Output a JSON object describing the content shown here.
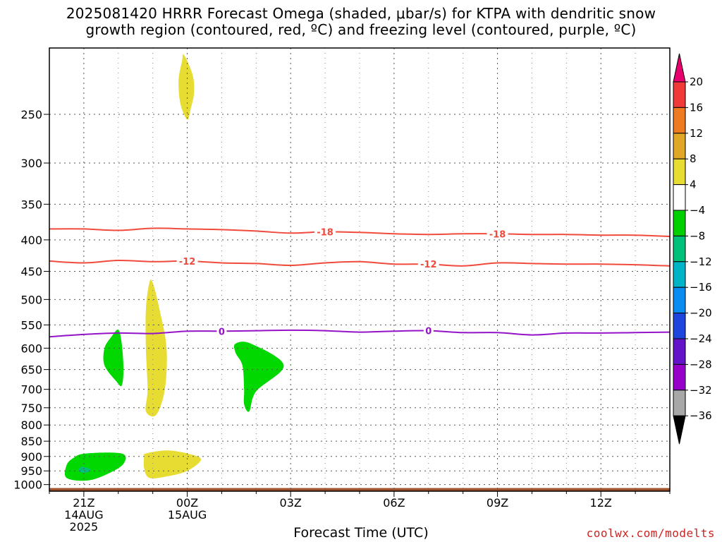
{
  "title": {
    "line1": "2025081420 HRRR Forecast Omega (shaded, μbar/s) for KTPA with dendritic snow",
    "line2": "growth region (contoured, red, ºC) and freezing level (contoured, purple, ºC)"
  },
  "credit": "coolwx.com/modelts",
  "colors": {
    "temp_contour": "#f04a3c",
    "freezing_contour": "#9412c8",
    "ground": "#a0522d",
    "rising_green": "#00d800",
    "sinking_yellow": "#e6dc32"
  },
  "chart_data": {
    "type": "area",
    "xlabel": "Forecast Time (UTC)",
    "x_ticks": [
      {
        "lines": [
          "21Z",
          "14AUG",
          "2025"
        ],
        "hour": 0
      },
      {
        "lines": [
          "00Z",
          "15AUG"
        ],
        "hour": 3
      },
      {
        "lines": [
          "03Z"
        ],
        "hour": 6
      },
      {
        "lines": [
          "06Z"
        ],
        "hour": 9
      },
      {
        "lines": [
          "09Z"
        ],
        "hour": 12
      },
      {
        "lines": [
          "12Z"
        ],
        "hour": 15
      }
    ],
    "xlim_hours": [
      -1,
      17
    ],
    "y_ticks": [
      250,
      300,
      350,
      400,
      450,
      500,
      550,
      600,
      650,
      700,
      750,
      800,
      850,
      900,
      950,
      1000
    ],
    "ylim_hpa": [
      195,
      1025
    ],
    "y_scale": "log-pressure",
    "grid": true,
    "colorbar": {
      "labels": [
        "20",
        "16",
        "12",
        "8",
        "4",
        "−4",
        "−8",
        "−12",
        "−16",
        "−20",
        "−24",
        "−28",
        "−32",
        "−36"
      ],
      "colors": [
        "#e8006e",
        "#f03a3a",
        "#ee7a22",
        "#e0a628",
        "#e6dc32",
        "#ffffff",
        "#00d000",
        "#00c07a",
        "#00b4c8",
        "#0a8cf0",
        "#1e46dc",
        "#6414c8",
        "#9600c8",
        "#a8a8a8",
        "#000000"
      ]
    },
    "contours": [
      {
        "value": -18,
        "label": "-18",
        "color": "#f04a3c",
        "points": [
          [
            -1,
            384
          ],
          [
            0,
            384
          ],
          [
            1,
            386
          ],
          [
            2,
            383
          ],
          [
            3,
            384
          ],
          [
            4,
            385
          ],
          [
            5,
            387
          ],
          [
            6,
            390
          ],
          [
            7,
            388
          ],
          [
            8,
            389
          ],
          [
            9,
            391
          ],
          [
            10,
            392
          ],
          [
            11,
            391
          ],
          [
            12,
            391
          ],
          [
            13,
            392
          ],
          [
            14,
            392
          ],
          [
            15,
            393
          ],
          [
            16,
            393
          ],
          [
            17,
            395
          ]
        ],
        "label_hours": [
          7,
          12
        ]
      },
      {
        "value": -12,
        "label": "-12",
        "color": "#f04a3c",
        "points": [
          [
            -1,
            433
          ],
          [
            0,
            436
          ],
          [
            1,
            432
          ],
          [
            2,
            434
          ],
          [
            3,
            433
          ],
          [
            4,
            436
          ],
          [
            5,
            437
          ],
          [
            6,
            440
          ],
          [
            7,
            436
          ],
          [
            8,
            434
          ],
          [
            9,
            438
          ],
          [
            10,
            438
          ],
          [
            11,
            441
          ],
          [
            12,
            436
          ],
          [
            13,
            437
          ],
          [
            14,
            438
          ],
          [
            15,
            438
          ],
          [
            16,
            439
          ],
          [
            17,
            441
          ]
        ],
        "label_hours": [
          3,
          10
        ]
      },
      {
        "value": 0,
        "label": "0",
        "color": "#9412c8",
        "points": [
          [
            -1,
            575
          ],
          [
            0,
            570
          ],
          [
            1,
            567
          ],
          [
            2,
            568
          ],
          [
            3,
            563
          ],
          [
            4,
            563
          ],
          [
            5,
            562
          ],
          [
            6,
            561
          ],
          [
            7,
            562
          ],
          [
            8,
            565
          ],
          [
            9,
            563
          ],
          [
            10,
            562
          ],
          [
            11,
            566
          ],
          [
            12,
            566
          ],
          [
            13,
            571
          ],
          [
            14,
            567
          ],
          [
            15,
            567
          ],
          [
            16,
            566
          ],
          [
            17,
            565
          ]
        ],
        "label_hours": [
          4,
          10
        ]
      }
    ],
    "shaded_regions": [
      {
        "omega_class": "4 to 8",
        "color": "#e6dc32",
        "points": [
          [
            2.9,
            200
          ],
          [
            3.15,
            215
          ],
          [
            3.2,
            230
          ],
          [
            3.1,
            245
          ],
          [
            3.0,
            255
          ],
          [
            2.8,
            240
          ],
          [
            2.75,
            220
          ],
          [
            2.85,
            205
          ]
        ]
      },
      {
        "omega_class": "4 to 8",
        "color": "#e6dc32",
        "points": [
          [
            2.0,
            470
          ],
          [
            2.2,
            520
          ],
          [
            2.4,
            600
          ],
          [
            2.35,
            700
          ],
          [
            2.1,
            770
          ],
          [
            1.8,
            760
          ],
          [
            1.85,
            700
          ],
          [
            1.8,
            600
          ],
          [
            1.8,
            520
          ],
          [
            1.9,
            470
          ]
        ]
      },
      {
        "omega_class": "4 to 8",
        "color": "#e6dc32",
        "points": [
          [
            1.8,
            890
          ],
          [
            2.4,
            880
          ],
          [
            3.0,
            890
          ],
          [
            3.4,
            910
          ],
          [
            3.0,
            950
          ],
          [
            2.4,
            970
          ],
          [
            1.9,
            975
          ],
          [
            1.75,
            940
          ],
          [
            1.75,
            900
          ]
        ]
      },
      {
        "omega_class": "-8 to -4",
        "color": "#00d800",
        "points": [
          [
            1.0,
            560
          ],
          [
            1.1,
            590
          ],
          [
            1.15,
            650
          ],
          [
            1.1,
            690
          ],
          [
            0.95,
            680
          ],
          [
            0.6,
            640
          ],
          [
            0.6,
            600
          ],
          [
            0.8,
            575
          ]
        ]
      },
      {
        "omega_class": "-8 to -4",
        "color": "#00d800",
        "points": [
          [
            0.05,
            890
          ],
          [
            1.1,
            890
          ],
          [
            1.15,
            925
          ],
          [
            0.7,
            960
          ],
          [
            0.1,
            985
          ],
          [
            -0.5,
            975
          ],
          [
            -0.5,
            930
          ],
          [
            -0.3,
            905
          ]
        ]
      },
      {
        "omega_class": "-12 to -8",
        "color": "#00c07a",
        "points": [
          [
            -0.05,
            935
          ],
          [
            0.2,
            945
          ],
          [
            0.1,
            955
          ],
          [
            -0.1,
            955
          ],
          [
            -0.15,
            945
          ]
        ]
      },
      {
        "omega_class": "-8 to -4",
        "color": "#00d800",
        "points": [
          [
            4.4,
            590
          ],
          [
            4.85,
            590
          ],
          [
            5.8,
            640
          ],
          [
            5.0,
            705
          ],
          [
            4.8,
            760
          ],
          [
            4.65,
            740
          ],
          [
            4.65,
            700
          ],
          [
            4.6,
            640
          ],
          [
            4.4,
            610
          ]
        ]
      }
    ],
    "ground_hpa": 1013
  }
}
